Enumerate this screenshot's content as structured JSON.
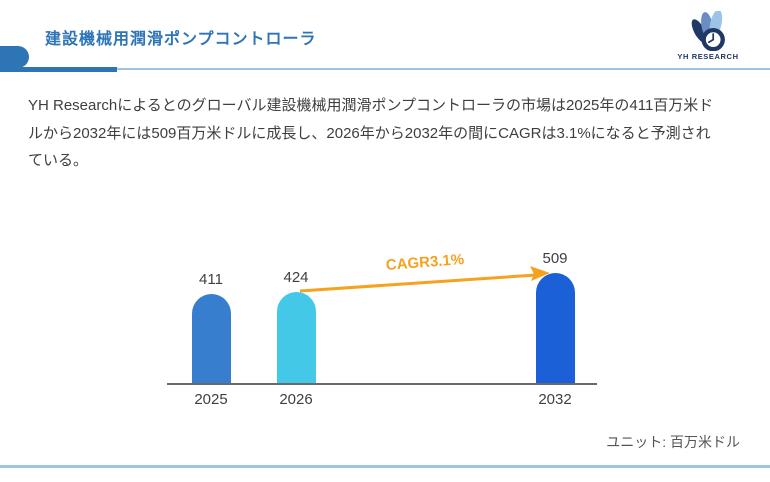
{
  "header": {
    "title": "建設機械用潤滑ポンプコントローラ",
    "logo_text": "YH RESEARCH",
    "accent_color": "#2E75B6",
    "light_line_color": "#9DC3E6",
    "logo_navy": "#203864",
    "logo_slate": "#6B8CC4",
    "logo_light_blue": "#9DC3E6"
  },
  "summary": {
    "lines": [
      "YH Researchによるとのグローバル建設機械用潤滑ポンプコントローラの市場は2025年の411百万米ド",
      "ルから2032年には509百万米ドルに成長し、2026年から2032年の間にCAGRは3.1%になると予測され",
      "ている。"
    ]
  },
  "chart_data": {
    "type": "bar",
    "categories": [
      "2025",
      "2026",
      "2032"
    ],
    "values": [
      411,
      424,
      509
    ],
    "bar_colors": [
      "#377FCE",
      "#44C8E8",
      "#1C60D8"
    ],
    "value_labels": [
      "411",
      "424",
      "509"
    ],
    "annotation": {
      "label": "CAGR3.1%",
      "color": "#F6A21E",
      "from_category": "2026",
      "to_category": "2032"
    },
    "unit_label": "ユニット: 百万米ドル",
    "ylim": [
      0,
      560
    ],
    "grid": false,
    "legend": false,
    "baseline_color": "#6A6A6A"
  }
}
